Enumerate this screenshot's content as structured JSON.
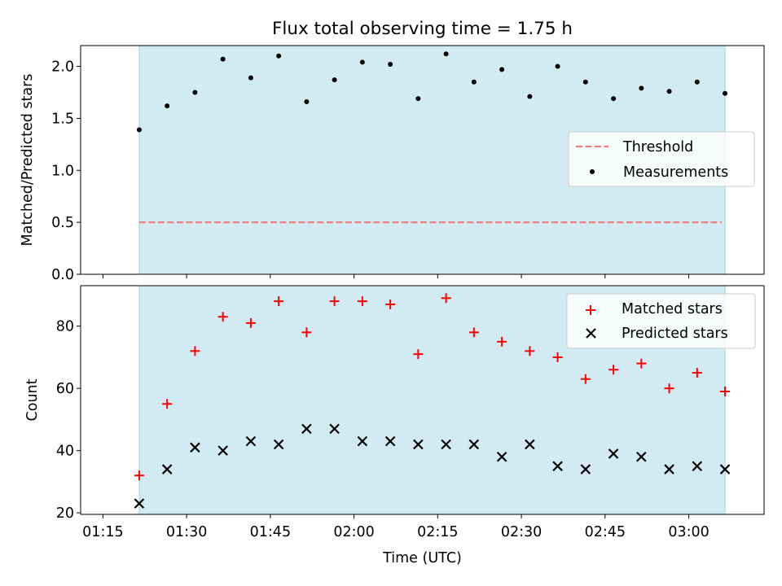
{
  "chart_data": {
    "type": "scatter",
    "title": "Flux total observing time = 1.75 h",
    "xlabel": "Time (UTC)",
    "x_ticks": [
      "01:15",
      "01:30",
      "01:45",
      "02:00",
      "02:15",
      "02:30",
      "02:45",
      "03:00"
    ],
    "x_tick_minutes": [
      75,
      90,
      105,
      120,
      135,
      150,
      165,
      180
    ],
    "xlim_minutes": [
      71.0,
      193.5
    ],
    "observing_window_minutes": [
      81.5,
      186.5
    ],
    "observing_window_color": "#add8e6",
    "time_minutes": [
      81.5,
      86.5,
      91.5,
      96.5,
      101.5,
      106.5,
      111.5,
      116.5,
      121.5,
      126.5,
      131.5,
      136.5,
      141.5,
      146.5,
      151.5,
      156.5,
      161.5,
      166.5,
      171.5,
      176.5,
      181.5,
      186.5
    ],
    "top_panel": {
      "ylabel": "Matched/Predicted stars",
      "ylim": [
        0.0,
        2.2
      ],
      "y_ticks": [
        "0.0",
        "0.5",
        "1.0",
        "1.5",
        "2.0"
      ],
      "y_tick_values": [
        0.0,
        0.5,
        1.0,
        1.5,
        2.0
      ],
      "threshold": 0.5,
      "threshold_color": "#f08080",
      "series": [
        {
          "name": "Threshold",
          "color": "#f08080"
        },
        {
          "name": "Measurements",
          "color": "#000000",
          "values": [
            1.39,
            1.62,
            1.75,
            2.07,
            1.89,
            2.1,
            1.66,
            1.87,
            2.04,
            2.02,
            1.69,
            2.12,
            1.85,
            1.97,
            1.71,
            2.0,
            1.85,
            1.69,
            1.79,
            1.76,
            1.85,
            1.74
          ]
        }
      ],
      "legend_position": "center-right"
    },
    "bottom_panel": {
      "ylabel": "Count",
      "ylim": [
        19.5,
        93
      ],
      "y_ticks": [
        "20",
        "40",
        "60",
        "80"
      ],
      "y_tick_values": [
        20,
        40,
        60,
        80
      ],
      "series": [
        {
          "name": "Matched stars",
          "marker": "+",
          "color": "#ff0000",
          "values": [
            32,
            55,
            72,
            83,
            81,
            88,
            78,
            88,
            88,
            87,
            71,
            89,
            78,
            75,
            72,
            70,
            63,
            66,
            68,
            60,
            65,
            59
          ]
        },
        {
          "name": "Predicted stars",
          "marker": "x",
          "color": "#000000",
          "values": [
            23,
            34,
            41,
            40,
            43,
            42,
            47,
            47,
            43,
            43,
            42,
            42,
            42,
            38,
            42,
            35,
            34,
            39,
            38,
            34,
            35,
            34
          ]
        }
      ],
      "legend_position": "top-right"
    }
  }
}
